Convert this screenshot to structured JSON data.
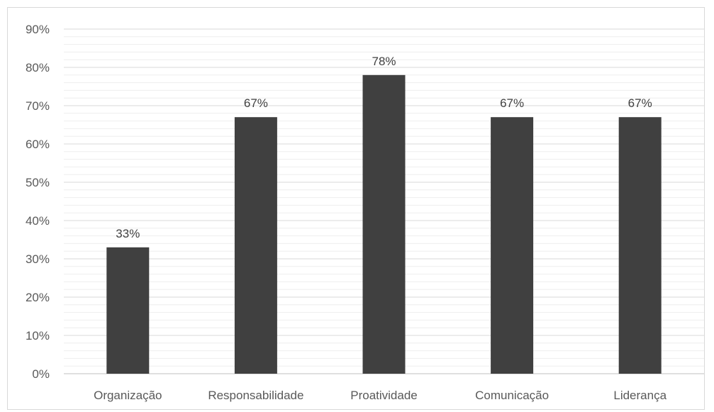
{
  "chart_data": {
    "type": "bar",
    "categories": [
      "Organização",
      "Responsabilidade",
      "Proatividade",
      "Comunicação",
      "Liderança"
    ],
    "values": [
      33,
      67,
      78,
      67,
      67
    ],
    "data_labels": [
      "33%",
      "67%",
      "78%",
      "67%",
      "67%"
    ],
    "title": "",
    "xlabel": "",
    "ylabel": "",
    "ylim": [
      0,
      90
    ],
    "y_ticks": [
      0,
      10,
      20,
      30,
      40,
      50,
      60,
      70,
      80,
      90
    ],
    "y_tick_labels": [
      "0%",
      "10%",
      "20%",
      "30%",
      "40%",
      "50%",
      "60%",
      "70%",
      "80%",
      "90%"
    ],
    "grid": true,
    "minor_grid": true,
    "legend": "none",
    "colors": {
      "bar": "#404040",
      "major_grid": "#d9d9d9",
      "minor_grid": "#eeeeee",
      "axis": "#bfbfbf"
    }
  }
}
